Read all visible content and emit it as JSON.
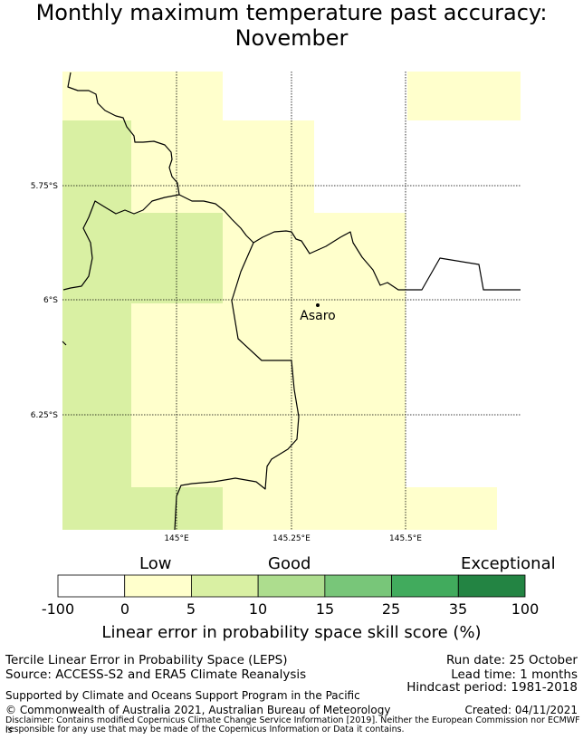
{
  "title": {
    "line1": "Monthly maximum temperature past accuracy:",
    "line2": "November"
  },
  "map": {
    "lat_labels": [
      "5.75°S",
      "6°S",
      "6.25°S"
    ],
    "lon_labels": [
      "145°E",
      "145.25°E",
      "145.5°E"
    ],
    "place": {
      "name": "Asaro"
    }
  },
  "colorbar": {
    "category_labels": [
      "Low",
      "Good",
      "Exceptional"
    ],
    "ticks": [
      "-100",
      "0",
      "5",
      "10",
      "15",
      "25",
      "35",
      "100"
    ],
    "colors": [
      "#ffffff",
      "#ffffcc",
      "#d9f0a3",
      "#addd8e",
      "#78c679",
      "#41ab5d",
      "#238443"
    ],
    "label": "Linear error in probability space skill score (%)"
  },
  "footer": {
    "left": [
      "Tercile Linear Error in Probability Space (LEPS)",
      "Source: ACCESS-S2 and ERA5 Climate Reanalysis"
    ],
    "right": [
      "Run date: 25 October",
      "Lead time: 1 months",
      "Hindcast period: 1981-2018"
    ],
    "support": "Supported by Climate and Oceans Support Program in the Pacific",
    "copyright": "© Commonwealth of Australia 2021, Australian Bureau of Meteorology",
    "created": "Created: 04/11/2021",
    "disclaimer_line1": "Disclaimer: Contains modified Copernicus Climate Change Service Information [2019]. Neither the European Commission nor ECMWF is",
    "disclaimer_line2": "responsible for any use that may be made of the Copernicus Information or Data it contains."
  }
}
